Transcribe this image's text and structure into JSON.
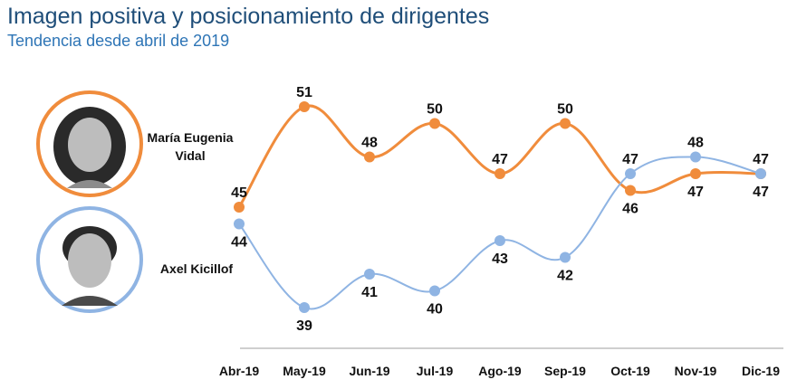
{
  "header": {
    "title": "Imagen positiva y posicionamiento de dirigentes",
    "subtitle": "Tendencia desde abril de 2019"
  },
  "people": [
    {
      "name_line1": "María Eugenia",
      "name_line2": "Vidal",
      "ring_color": "#f08c3c",
      "photo": "portrait-photo"
    },
    {
      "name_line1": "Axel Kicillof",
      "name_line2": "",
      "ring_color": "#8fb4e3",
      "photo": "portrait-photo"
    }
  ],
  "chart_data": {
    "type": "line",
    "title": "Imagen positiva y posicionamiento de dirigentes",
    "subtitle": "Tendencia desde abril de 2019",
    "categories": [
      "Abr-19",
      "May-19",
      "Jun-19",
      "Jul-19",
      "Ago-19",
      "Sep-19",
      "Oct-19",
      "Nov-19",
      "Dic-19"
    ],
    "series": [
      {
        "name": "María Eugenia Vidal",
        "color": "#f08c3c",
        "values": [
          45,
          51,
          48,
          50,
          47,
          50,
          46,
          47,
          47
        ]
      },
      {
        "name": "Axel Kicillof",
        "color": "#8fb4e3",
        "values": [
          44,
          39,
          41,
          40,
          43,
          42,
          47,
          48,
          47
        ]
      }
    ],
    "ylim": [
      37,
      53
    ],
    "grid": false,
    "legend": "left, with portraits"
  }
}
